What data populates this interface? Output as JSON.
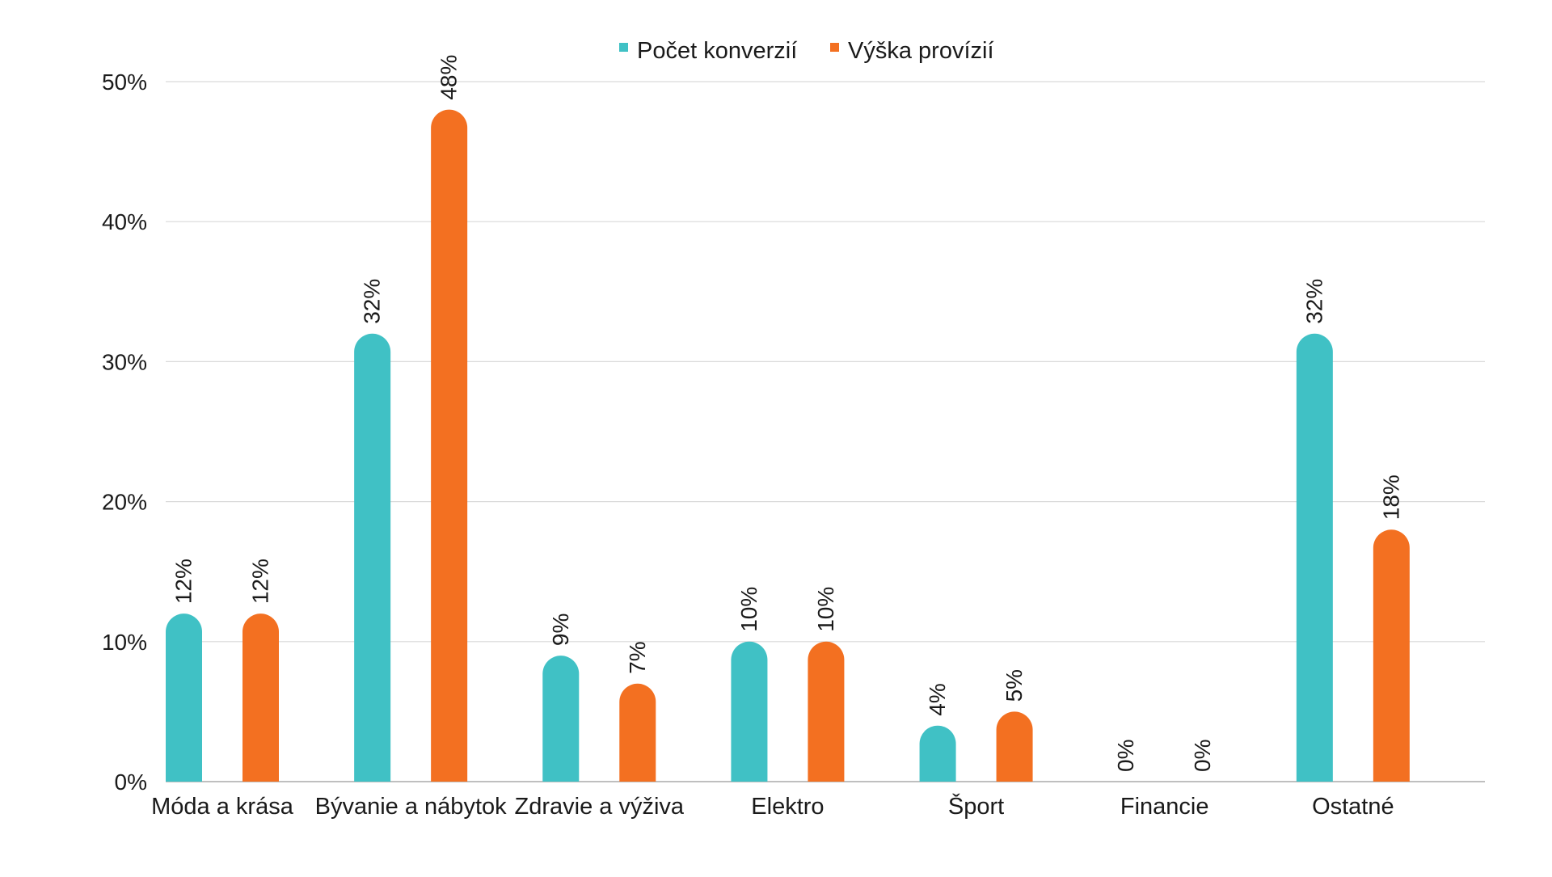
{
  "chart_data": {
    "type": "bar",
    "title": "",
    "xlabel": "",
    "ylabel": "",
    "categories": [
      "Móda a krása",
      "Bývanie a nábytok",
      "Zdravie a výživa",
      "Elektro",
      "Šport",
      "Financie",
      "Ostatné"
    ],
    "series": [
      {
        "name": "Počet konverzií",
        "color": "#40C1C5",
        "values": [
          12,
          32,
          9,
          10,
          4,
          0,
          32
        ],
        "labels": [
          "12%",
          "32%",
          "9%",
          "10%",
          "4%",
          "0%",
          "32%"
        ]
      },
      {
        "name": "Výška provízií",
        "color": "#F37021",
        "values": [
          12,
          48,
          7,
          10,
          5,
          0,
          18
        ],
        "labels": [
          "12%",
          "48%",
          "7%",
          "10%",
          "5%",
          "0%",
          "18%"
        ]
      }
    ],
    "ylim": [
      0,
      50
    ],
    "yticks": [
      0,
      10,
      20,
      30,
      40,
      50
    ],
    "ytick_labels": [
      "0%",
      "10%",
      "20%",
      "30%",
      "40%",
      "50%"
    ],
    "grid": true,
    "legend_position": "top-center",
    "data_label_rotation": "vertical"
  }
}
